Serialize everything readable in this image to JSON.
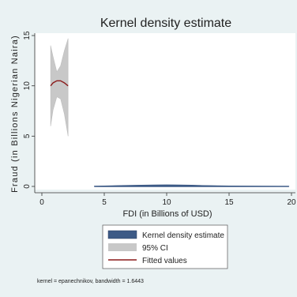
{
  "chart_data": {
    "type": "area",
    "title": "Kernel density estimate",
    "xlabel": "FDI (in Billions of USD)",
    "ylabel": "Fraud (in Billions Nigerian Naira)",
    "xlim": [
      0,
      20
    ],
    "ylim": [
      0,
      15
    ],
    "x_ticks": [
      0,
      5,
      10,
      15,
      20
    ],
    "y_ticks": [
      0,
      5,
      10,
      15
    ],
    "grid": false,
    "legend_position": "bottom",
    "colors": {
      "kde": "#3d5a86",
      "ci": "#c8c8c8",
      "fit": "#8b1a1a"
    },
    "series": [
      {
        "name": "Kernel density estimate",
        "kind": "density",
        "x": [
          4.2,
          5.0,
          6.0,
          7.0,
          8.0,
          9.0,
          10.0,
          11.0,
          12.0,
          13.0,
          14.0,
          15.0,
          16.0,
          17.0,
          18.0,
          19.0,
          19.8
        ],
        "y": [
          0.02,
          0.05,
          0.08,
          0.1,
          0.12,
          0.14,
          0.15,
          0.14,
          0.12,
          0.09,
          0.07,
          0.05,
          0.04,
          0.03,
          0.02,
          0.015,
          0.01
        ]
      },
      {
        "name": "95% CI",
        "kind": "band",
        "x": [
          0.7,
          0.9,
          1.2,
          1.5,
          1.8,
          2.1
        ],
        "lower": [
          6.0,
          7.6,
          8.9,
          8.7,
          7.2,
          5.0
        ],
        "upper": [
          14.0,
          12.9,
          11.4,
          12.0,
          13.5,
          14.7
        ]
      },
      {
        "name": "Fitted values",
        "kind": "line",
        "x": [
          0.7,
          0.9,
          1.2,
          1.5,
          1.8,
          2.1
        ],
        "y": [
          10.0,
          10.3,
          10.5,
          10.5,
          10.3,
          10.0
        ]
      }
    ],
    "note": "kernel = epanechnikov, bandwidth = 1.6443"
  }
}
